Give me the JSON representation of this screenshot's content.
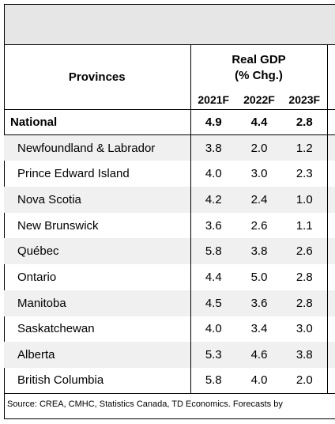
{
  "table": {
    "header": {
      "provinces_label": "Provinces",
      "group_label": "Real GDP\n(% Chg.)",
      "years": [
        "2021F",
        "2022F",
        "2023F"
      ]
    },
    "rows": [
      {
        "name": "National",
        "values": [
          "4.9",
          "4.4",
          "2.8"
        ]
      },
      {
        "name": "Newfoundland & Labrador",
        "values": [
          "3.8",
          "2.0",
          "1.2"
        ]
      },
      {
        "name": "Prince Edward Island",
        "values": [
          "4.0",
          "3.0",
          "2.3"
        ]
      },
      {
        "name": "Nova Scotia",
        "values": [
          "4.2",
          "2.4",
          "1.0"
        ]
      },
      {
        "name": "New Brunswick",
        "values": [
          "3.6",
          "2.6",
          "1.1"
        ]
      },
      {
        "name": "Québec",
        "values": [
          "5.8",
          "3.8",
          "2.6"
        ]
      },
      {
        "name": "Ontario",
        "values": [
          "4.4",
          "5.0",
          "2.8"
        ]
      },
      {
        "name": "Manitoba",
        "values": [
          "4.5",
          "3.6",
          "2.8"
        ]
      },
      {
        "name": "Saskatchewan",
        "values": [
          "4.0",
          "3.4",
          "3.0"
        ]
      },
      {
        "name": "Alberta",
        "values": [
          "5.3",
          "4.6",
          "3.8"
        ]
      },
      {
        "name": "British Columbia",
        "values": [
          "5.8",
          "4.0",
          "2.0"
        ]
      }
    ]
  },
  "source": "Source: CREA, CMHC, Statistics Canada, TD Economics. Forecasts by",
  "colors": {
    "banner": "#e6e6e6",
    "shaded_row": "#f0f0f0"
  }
}
